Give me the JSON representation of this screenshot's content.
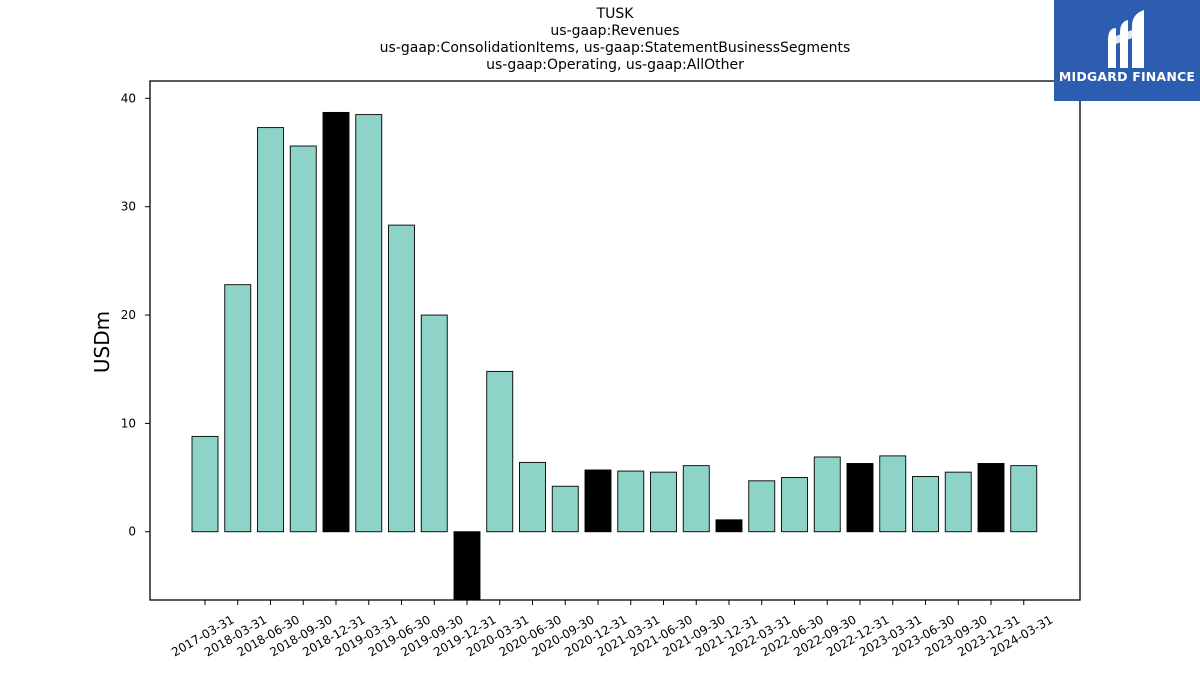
{
  "brand": {
    "name": "MIDGARD FINANCE",
    "logo_icon": "midgard-m-logo-icon",
    "background_color": "#2d5db0"
  },
  "chart_data": {
    "type": "bar",
    "title_lines": [
      "TUSK",
      "us-gaap:Revenues",
      "us-gaap:ConsolidationItems, us-gaap:StatementBusinessSegments",
      "us-gaap:Operating, us-gaap:AllOther"
    ],
    "xlabel": "",
    "ylabel": "USDm",
    "ylim": [
      -6.3,
      41.6
    ],
    "yticks": [
      0,
      10,
      20,
      30,
      40
    ],
    "grid": false,
    "categories": [
      "2017-03-31",
      "2018-03-31",
      "2018-06-30",
      "2018-09-30",
      "2018-12-31",
      "2019-03-31",
      "2019-06-30",
      "2019-09-30",
      "2019-12-31",
      "2020-03-31",
      "2020-06-30",
      "2020-09-30",
      "2020-12-31",
      "2021-03-31",
      "2021-06-30",
      "2021-09-30",
      "2021-12-31",
      "2022-03-31",
      "2022-06-30",
      "2022-09-30",
      "2022-12-31",
      "2023-03-31",
      "2023-06-30",
      "2023-09-30",
      "2023-12-31",
      "2024-03-31"
    ],
    "values": [
      8.8,
      22.8,
      37.3,
      35.6,
      38.7,
      38.5,
      28.3,
      20.0,
      -6.3,
      14.8,
      6.4,
      4.2,
      5.7,
      5.6,
      5.5,
      6.1,
      1.1,
      4.7,
      5.0,
      6.9,
      6.3,
      7.0,
      5.1,
      5.5,
      6.3,
      6.1
    ],
    "highlight": [
      false,
      false,
      false,
      false,
      true,
      false,
      false,
      false,
      true,
      false,
      false,
      false,
      true,
      false,
      false,
      false,
      true,
      false,
      false,
      false,
      true,
      false,
      false,
      false,
      true,
      false
    ],
    "colors": {
      "bar": "#8dd3c7",
      "highlight": "#000000",
      "edge": "#000000"
    }
  }
}
